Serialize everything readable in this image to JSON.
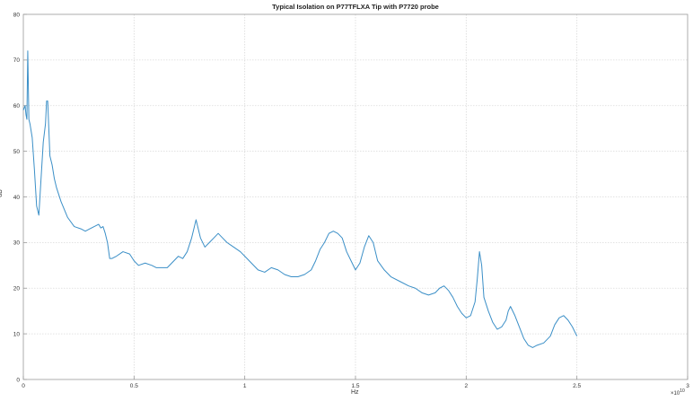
{
  "chart_data": {
    "type": "line",
    "title": "Typical Isolation on P77TFLXA Tip with P7720 probe",
    "xlabel": "Hz",
    "ylabel": "dB",
    "x_exponent_label": "×10",
    "x_exponent_power": "10",
    "xlim": [
      0,
      3
    ],
    "ylim": [
      0,
      80
    ],
    "xticks": [
      "0",
      "0.5",
      "1",
      "1.5",
      "2",
      "2.5",
      "3"
    ],
    "yticks": [
      "0",
      "10",
      "20",
      "30",
      "40",
      "50",
      "60",
      "70",
      "80"
    ],
    "grid": true,
    "line_color": "#3b8fc7",
    "series": [
      {
        "x": [
          0,
          0.008,
          0.012,
          0.016,
          0.02,
          0.025,
          0.03,
          0.04,
          0.05,
          0.06,
          0.07,
          0.08,
          0.09,
          0.1,
          0.105,
          0.11,
          0.115,
          0.12,
          0.13,
          0.14,
          0.15,
          0.17,
          0.2,
          0.23,
          0.26,
          0.28,
          0.3,
          0.32,
          0.34,
          0.35,
          0.36,
          0.37,
          0.38,
          0.39,
          0.4,
          0.42,
          0.45,
          0.48,
          0.5,
          0.52,
          0.55,
          0.58,
          0.6,
          0.63,
          0.65,
          0.68,
          0.7,
          0.72,
          0.74,
          0.76,
          0.78,
          0.8,
          0.82,
          0.84,
          0.86,
          0.88,
          0.9,
          0.92,
          0.95,
          0.98,
          1.0,
          1.03,
          1.06,
          1.09,
          1.12,
          1.15,
          1.18,
          1.21,
          1.24,
          1.27,
          1.3,
          1.32,
          1.34,
          1.36,
          1.38,
          1.4,
          1.42,
          1.44,
          1.46,
          1.48,
          1.5,
          1.52,
          1.54,
          1.56,
          1.58,
          1.6,
          1.63,
          1.66,
          1.7,
          1.74,
          1.77,
          1.8,
          1.83,
          1.86,
          1.88,
          1.9,
          1.92,
          1.94,
          1.96,
          1.98,
          2.0,
          2.02,
          2.04,
          2.05,
          2.06,
          2.07,
          2.08,
          2.1,
          2.12,
          2.14,
          2.16,
          2.18,
          2.19,
          2.2,
          2.22,
          2.24,
          2.26,
          2.28,
          2.3,
          2.32,
          2.35,
          2.38,
          2.4,
          2.42,
          2.44,
          2.46,
          2.48,
          2.5
        ],
        "y": [
          59,
          60,
          58,
          57,
          72,
          57,
          56,
          53,
          46,
          38,
          36,
          44,
          52,
          56,
          61,
          61,
          55,
          49,
          47,
          44,
          42,
          39,
          35.5,
          33.5,
          33,
          32.5,
          33,
          33.5,
          34,
          33.2,
          33.5,
          32,
          30,
          26.5,
          26.5,
          27,
          28,
          27.5,
          26,
          25,
          25.5,
          25,
          24.5,
          24.5,
          24.5,
          26,
          27,
          26.5,
          28,
          31,
          35,
          31,
          29,
          30,
          31,
          32,
          31,
          30,
          29,
          28,
          27,
          25.5,
          24,
          23.5,
          24.5,
          24,
          23,
          22.5,
          22.5,
          23,
          24,
          26,
          28.5,
          30,
          32,
          32.5,
          32,
          31,
          28,
          26,
          24,
          25.5,
          29,
          31.5,
          30,
          26,
          24,
          22.5,
          21.5,
          20.5,
          20,
          19,
          18.5,
          19,
          20,
          20.5,
          19.5,
          18,
          16,
          14.5,
          13.5,
          14,
          17,
          22,
          28,
          25,
          18,
          15,
          12.5,
          11,
          11.5,
          13,
          15,
          16,
          14,
          11.5,
          9,
          7.5,
          7,
          7.5,
          8,
          9.5,
          12,
          13.5,
          14,
          13,
          11.5,
          9.5
        ]
      }
    ]
  }
}
